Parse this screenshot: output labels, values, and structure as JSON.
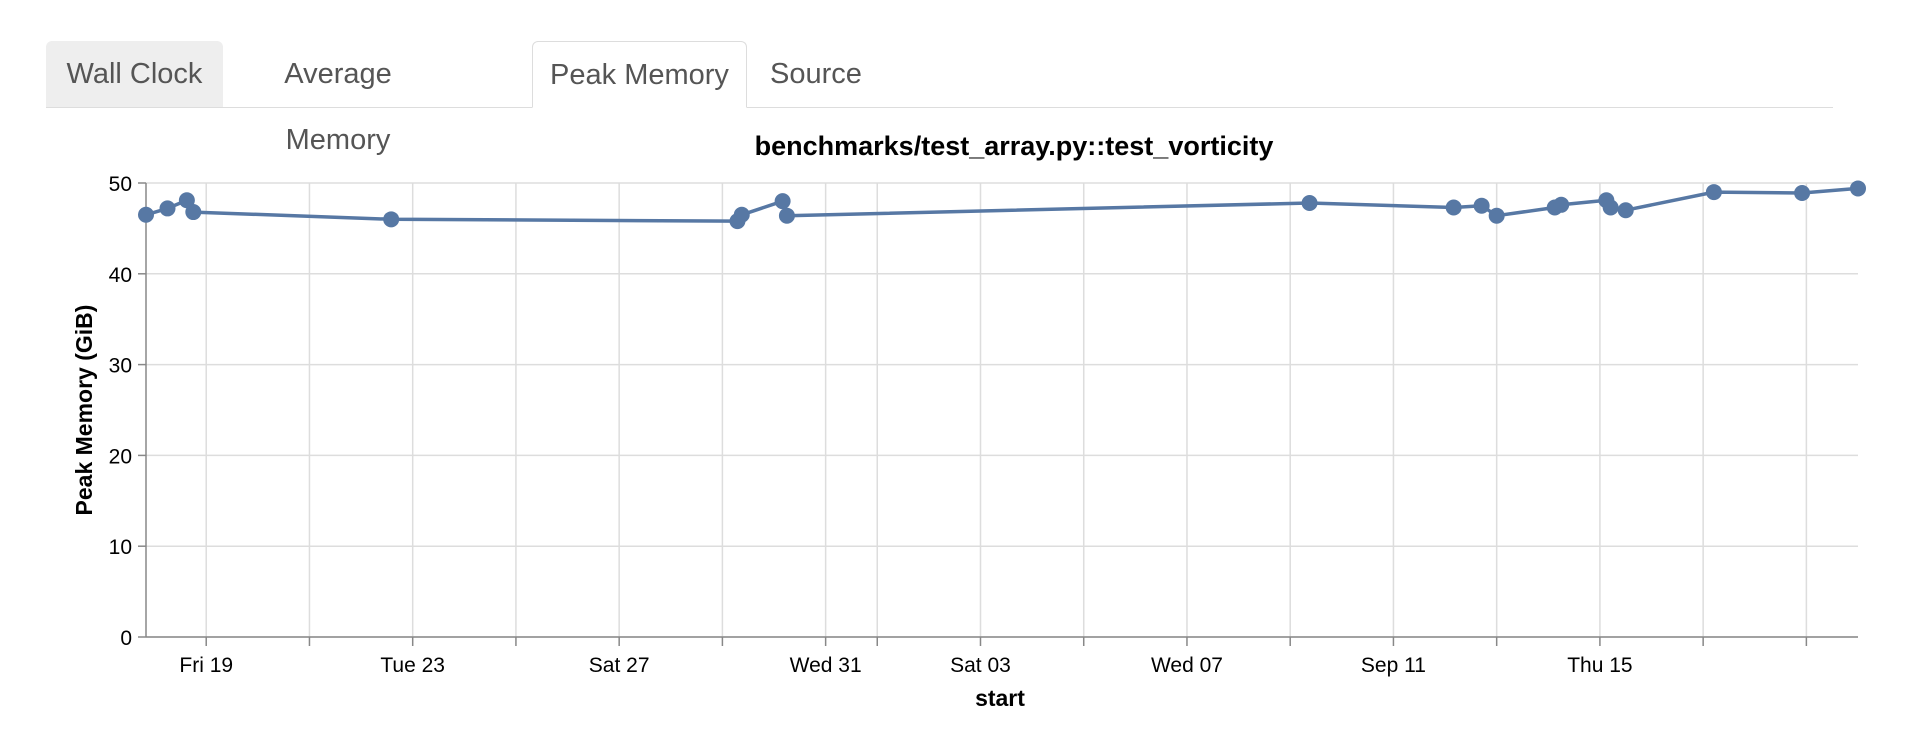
{
  "tabs": [
    {
      "label": "Wall Clock"
    },
    {
      "label": "Average Memory"
    },
    {
      "label": "Peak Memory"
    },
    {
      "label": "Source"
    }
  ],
  "active_tab": "Peak Memory",
  "colors": {
    "series": "#5778a4",
    "grid": "#dddddd",
    "axis": "#888888"
  },
  "chart_data": {
    "type": "line",
    "title": "benchmarks/test_array.py::test_vorticity",
    "xlabel": "start",
    "ylabel": "Peak Memory (GiB)",
    "ylim": [
      0,
      50
    ],
    "yticks": [
      0,
      10,
      20,
      30,
      40,
      50
    ],
    "xlim": [
      "Aug 17 20:00",
      "Sep 20"
    ],
    "xticks": [
      {
        "date": "Aug 19",
        "label": "Fri 19"
      },
      {
        "date": "Aug 21",
        "label": ""
      },
      {
        "date": "Aug 23",
        "label": "Tue 23"
      },
      {
        "date": "Aug 25",
        "label": ""
      },
      {
        "date": "Aug 27",
        "label": "Sat 27"
      },
      {
        "date": "Aug 29",
        "label": ""
      },
      {
        "date": "Aug 31",
        "label": "Wed 31"
      },
      {
        "date": "Sep 01",
        "label": ""
      },
      {
        "date": "Sep 03",
        "label": "Sat 03"
      },
      {
        "date": "Sep 05",
        "label": ""
      },
      {
        "date": "Sep 07",
        "label": "Wed 07"
      },
      {
        "date": "Sep 09",
        "label": ""
      },
      {
        "date": "Sep 11",
        "label": "Sep 11"
      },
      {
        "date": "Sep 13",
        "label": ""
      },
      {
        "date": "Sep 15",
        "label": "Thu 15"
      },
      {
        "date": "Sep 17",
        "label": ""
      },
      {
        "date": "Sep 19",
        "label": ""
      }
    ],
    "grid": true,
    "points": [
      {
        "x": "Aug 17 20:00",
        "y": 46.5
      },
      {
        "x": "Aug 18 06:00",
        "y": 47.2
      },
      {
        "x": "Aug 18 15:00",
        "y": 48.1
      },
      {
        "x": "Aug 18 18:00",
        "y": 46.8
      },
      {
        "x": "Aug 22 14:00",
        "y": 46.0
      },
      {
        "x": "Aug 29 07:00",
        "y": 45.8
      },
      {
        "x": "Aug 29 09:00",
        "y": 46.5
      },
      {
        "x": "Aug 30 04:00",
        "y": 48.0
      },
      {
        "x": "Aug 30 06:00",
        "y": 46.4
      },
      {
        "x": "Sep 09 09:00",
        "y": 47.8
      },
      {
        "x": "Sep 12 04:00",
        "y": 47.3
      },
      {
        "x": "Sep 12 17:00",
        "y": 47.5
      },
      {
        "x": "Sep 13 00:00",
        "y": 46.4
      },
      {
        "x": "Sep 14 03:00",
        "y": 47.3
      },
      {
        "x": "Sep 14 06:00",
        "y": 47.6
      },
      {
        "x": "Sep 15 03:00",
        "y": 48.1
      },
      {
        "x": "Sep 15 05:00",
        "y": 47.3
      },
      {
        "x": "Sep 15 12:00",
        "y": 47.0
      },
      {
        "x": "Sep 17 05:00",
        "y": 49.0
      },
      {
        "x": "Sep 18 22:00",
        "y": 48.9
      },
      {
        "x": "Sep 20 00:00",
        "y": 49.4
      }
    ]
  }
}
